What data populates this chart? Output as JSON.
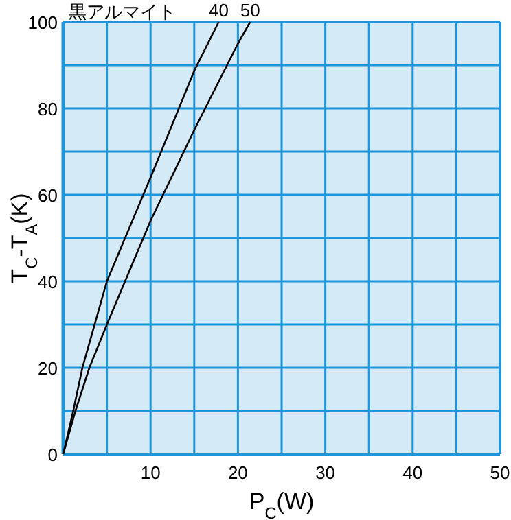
{
  "chart_data": {
    "type": "line",
    "title": "黒アルマイト",
    "xlabel": "P$_{C}$(W)",
    "ylabel": "T$_{C}$-T$_{A}$(K)",
    "xlim": [
      0,
      50
    ],
    "ylim": [
      0,
      100
    ],
    "xticks": [
      {
        "value": 0,
        "label": null
      },
      {
        "value": 5,
        "label": null
      },
      10,
      {
        "value": 15,
        "label": null
      },
      20,
      {
        "value": 25,
        "label": null
      },
      30,
      {
        "value": 35,
        "label": null
      },
      40,
      {
        "value": 45,
        "label": null
      },
      50
    ],
    "yticks": [
      0,
      {
        "value": 10,
        "label": null
      },
      20,
      {
        "value": 30,
        "label": null
      },
      40,
      {
        "value": 50,
        "label": null
      },
      60,
      {
        "value": 70,
        "label": null
      },
      80,
      {
        "value": 90,
        "label": null
      },
      100
    ],
    "grid": true,
    "marker": "none",
    "line_style": "solid",
    "series": [
      {
        "name": "40",
        "color": "#000000",
        "x": [
          0,
          1.15,
          2.2,
          5,
          10,
          15,
          17.8
        ],
        "values": [
          0,
          10,
          20,
          40,
          64,
          88.7,
          100
        ]
      },
      {
        "name": "50",
        "color": "#000000",
        "x": [
          0,
          1.4,
          3,
          5,
          10,
          15,
          20,
          21.4
        ],
        "values": [
          0,
          10,
          20,
          30,
          54,
          75,
          95,
          100
        ]
      }
    ]
  }
}
